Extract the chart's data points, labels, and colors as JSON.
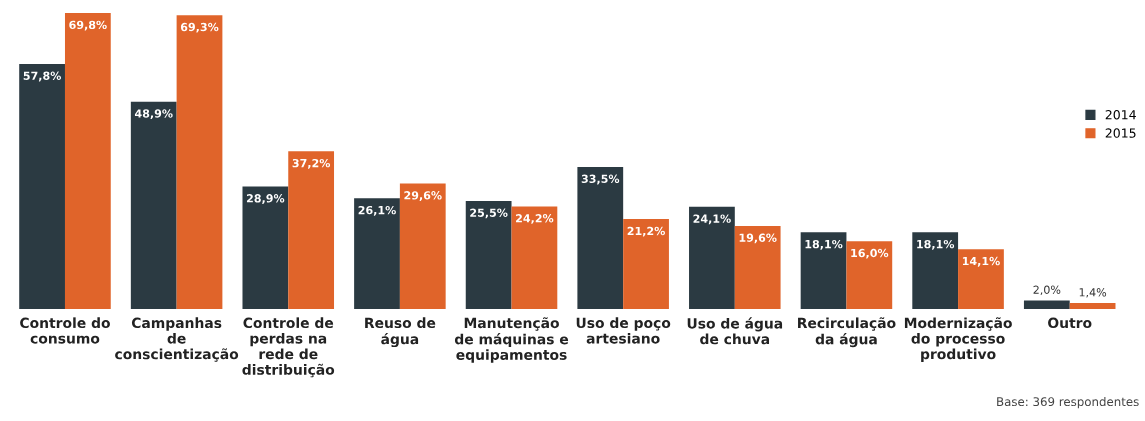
{
  "chart_data": {
    "type": "bar",
    "categories": [
      "Controle do\nconsumo",
      "Campanhas\nde\nconscientização",
      "Controle de\nperdas na\nrede de\ndistribuição",
      "Reuso de\nágua",
      "Manutenção\nde máquinas e\nequipamentos",
      "Uso de poço\nartesiano",
      "Uso de água\nde chuva",
      "Recirculação\nda água",
      "Modernização\ndo processo\nprodutivo",
      "Outro"
    ],
    "series": [
      {
        "name": "2014",
        "color": "#2b3a42",
        "values": [
          57.8,
          48.9,
          28.9,
          26.1,
          25.5,
          33.5,
          24.1,
          18.1,
          18.1,
          2.0
        ],
        "value_labels": [
          "57,8%",
          "48,9%",
          "28,9%",
          "26,1%",
          "25,5%",
          "33,5%",
          "24,1%",
          "18,1%",
          "18,1%",
          "2,0%"
        ]
      },
      {
        "name": "2015",
        "color": "#e0642a",
        "values": [
          69.8,
          69.3,
          37.2,
          29.6,
          24.2,
          21.2,
          19.6,
          16.0,
          14.1,
          1.4
        ],
        "value_labels": [
          "69,8%",
          "69,3%",
          "37,2%",
          "29,6%",
          "24,2%",
          "21,2%",
          "19,6%",
          "16,0%",
          "14,1%",
          "1,4%"
        ]
      }
    ],
    "ylim": [
      0,
      70
    ],
    "tick_labels": "x",
    "legend": "right",
    "grid": false,
    "annotations": [
      "Base: 369 respondentes"
    ]
  }
}
